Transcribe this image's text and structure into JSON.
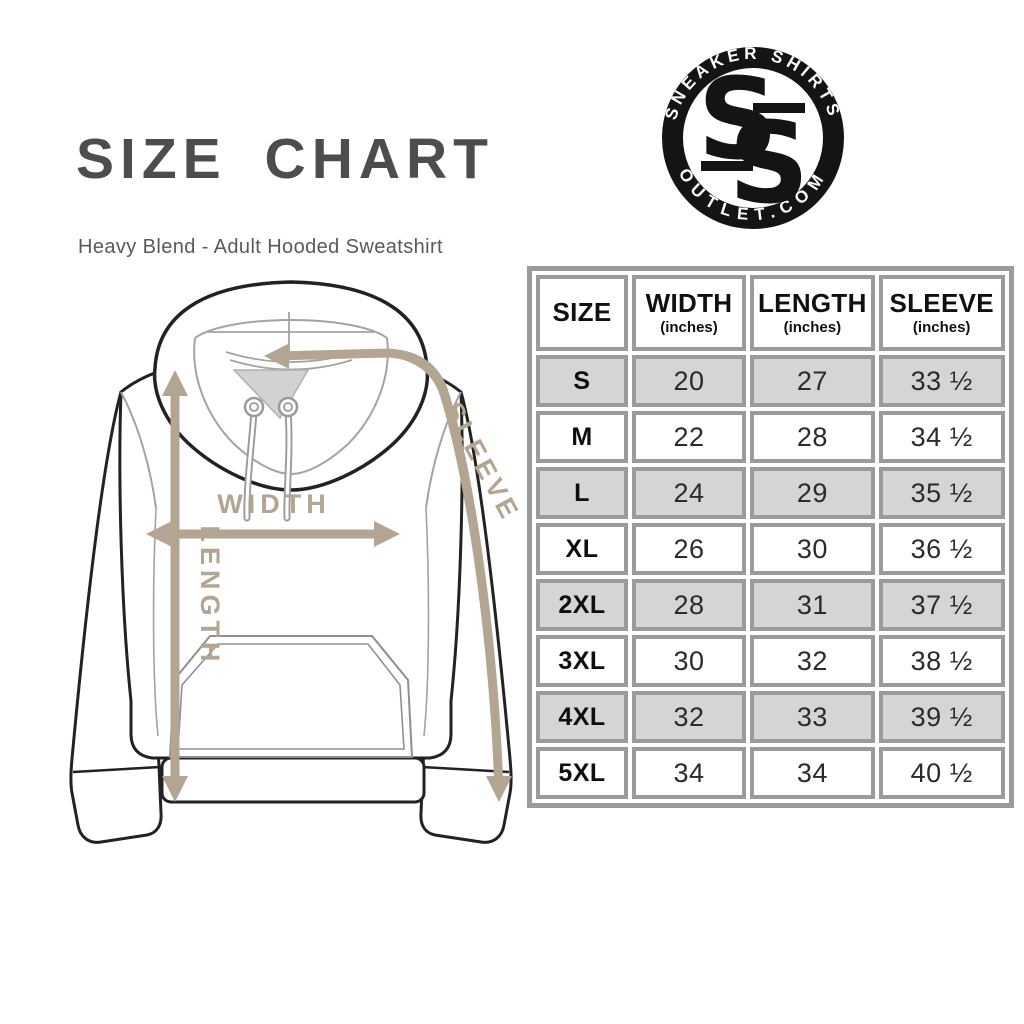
{
  "header": {
    "title": "SIZE CHART",
    "subtitle": "Heavy Blend - Adult Hooded Sweatshirt"
  },
  "logo": {
    "arc_top": "SNEAKER SHIRTS",
    "arc_bottom": "OUTLET.COM",
    "monogram_letter": "S"
  },
  "diagram": {
    "width_label": "WIDTH",
    "length_label": "LENGTH",
    "sleeve_label": "SLEEVE",
    "arrow_color": "#b3a592"
  },
  "table": {
    "columns": [
      {
        "label": "SIZE",
        "sub": ""
      },
      {
        "label": "WIDTH",
        "sub": "(inches)"
      },
      {
        "label": "LENGTH",
        "sub": "(inches)"
      },
      {
        "label": "SLEEVE",
        "sub": "(inches)"
      }
    ],
    "rows": [
      {
        "size": "S",
        "width": "20",
        "length": "27",
        "sleeve": "33 ½"
      },
      {
        "size": "M",
        "width": "22",
        "length": "28",
        "sleeve": "34 ½"
      },
      {
        "size": "L",
        "width": "24",
        "length": "29",
        "sleeve": "35 ½"
      },
      {
        "size": "XL",
        "width": "26",
        "length": "30",
        "sleeve": "36 ½"
      },
      {
        "size": "2XL",
        "width": "28",
        "length": "31",
        "sleeve": "37 ½"
      },
      {
        "size": "3XL",
        "width": "30",
        "length": "32",
        "sleeve": "38 ½"
      },
      {
        "size": "4XL",
        "width": "32",
        "length": "33",
        "sleeve": "39 ½"
      },
      {
        "size": "5XL",
        "width": "34",
        "length": "34",
        "sleeve": "40 ½"
      }
    ],
    "colors": {
      "row_alt": "#d5d5d5",
      "border": "#9b9b9b",
      "text": "#2b2b2b"
    }
  },
  "chart_data": {
    "type": "table",
    "title": "Heavy Blend - Adult Hooded Sweatshirt size chart",
    "categories": [
      "S",
      "M",
      "L",
      "XL",
      "2XL",
      "3XL",
      "4XL",
      "5XL"
    ],
    "series": [
      {
        "name": "WIDTH (inches)",
        "values": [
          20,
          22,
          24,
          26,
          28,
          30,
          32,
          34
        ]
      },
      {
        "name": "LENGTH (inches)",
        "values": [
          27,
          28,
          29,
          30,
          31,
          32,
          33,
          34
        ]
      },
      {
        "name": "SLEEVE (inches)",
        "values": [
          33.5,
          34.5,
          35.5,
          36.5,
          37.5,
          38.5,
          39.5,
          40.5
        ]
      }
    ]
  }
}
